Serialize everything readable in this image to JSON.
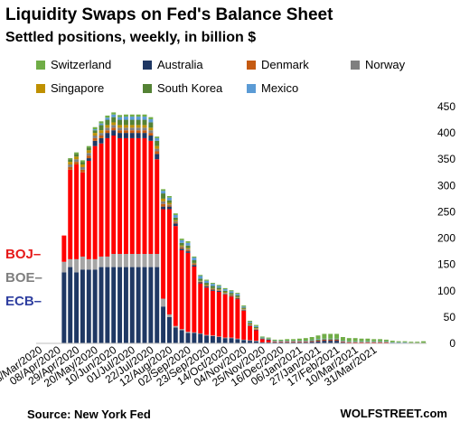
{
  "header": {
    "title": "Liquidity Swaps on Fed's Balance Sheet",
    "subtitle": "Settled positions, weekly, in billion $"
  },
  "legend": [
    {
      "name": "Switzerland",
      "color": "#70ad47"
    },
    {
      "name": "Australia",
      "color": "#1f3864"
    },
    {
      "name": "Denmark",
      "color": "#c55a11"
    },
    {
      "name": "Norway",
      "color": "#7f7f7f"
    },
    {
      "name": "Singapore",
      "color": "#bf9000"
    },
    {
      "name": "South Korea",
      "color": "#548235"
    },
    {
      "name": "Mexico",
      "color": "#5b9bd5"
    }
  ],
  "side_labels": [
    {
      "text": "BOJ",
      "color": "#e61919"
    },
    {
      "text": "BOE",
      "color": "#7f7f7f"
    },
    {
      "text": "ECB",
      "color": "#2f3fa0"
    }
  ],
  "footer": {
    "source": "Source: New York Fed",
    "brand": "WOLFSTREET.com"
  },
  "chart_data": {
    "type": "bar",
    "stacked": true,
    "y_axis_position": "right",
    "ylim": [
      0,
      450
    ],
    "yticks": [
      0,
      50,
      100,
      150,
      200,
      250,
      300,
      350,
      400,
      450
    ],
    "grid": false,
    "xlabels": [
      "18/Mar/2020",
      "08/Apr/2020",
      "29/Apr/2020",
      "20/May/2020",
      "10/Jun/2020",
      "01/Jul/2020",
      "22/Jul/2020",
      "12/Aug/2020",
      "02/Sep/2020",
      "23/Sep/2020",
      "14/Oct/2020",
      "04/Nov/2020",
      "25/Nov/2020",
      "16/Dec/2020",
      "06/Jan/2021",
      "27/Jan/2021",
      "17/Feb/2021",
      "10/Mar/2021",
      "31/Mar/2021"
    ],
    "series_colors": {
      "ECB": "#1f3864",
      "BOE": "#a5a5a5",
      "BOJ": "#ff0000",
      "Switzerland": "#70ad47",
      "Australia": "#1f3864",
      "Denmark": "#c55a11",
      "Norway": "#7f7f7f",
      "Singapore": "#bf9000",
      "South Korea": "#548235",
      "Mexico": "#5b9bd5"
    },
    "weeks": [
      {
        "ECB": 0.3,
        "BOE": 0,
        "BOJ": 0.1,
        "Switzerland": 0,
        "Australia": 0,
        "Denmark": 0,
        "Norway": 0,
        "Singapore": 0,
        "South Korea": 0,
        "Mexico": 0
      },
      {
        "ECB": 0.3,
        "BOE": 0,
        "BOJ": 0.1,
        "Switzerland": 0,
        "Australia": 0,
        "Denmark": 0,
        "Norway": 0,
        "Singapore": 0,
        "South Korea": 0,
        "Mexico": 0
      },
      {
        "ECB": 0.3,
        "BOE": 0,
        "BOJ": 0.2,
        "Switzerland": 0,
        "Australia": 0,
        "Denmark": 0,
        "Norway": 0,
        "Singapore": 0,
        "South Korea": 0,
        "Mexico": 0
      },
      {
        "ECB": 0.3,
        "BOE": 0,
        "BOJ": 0.2,
        "Switzerland": 0,
        "Australia": 0,
        "Denmark": 0,
        "Norway": 0,
        "Singapore": 0,
        "South Korea": 0,
        "Mexico": 0
      },
      {
        "ECB": 135,
        "BOE": 20,
        "BOJ": 50,
        "Switzerland": 0,
        "Australia": 0,
        "Denmark": 0,
        "Norway": 0,
        "Singapore": 0,
        "South Korea": 0,
        "Mexico": 0
      },
      {
        "ECB": 145,
        "BOE": 15,
        "BOJ": 170,
        "Switzerland": 2,
        "Australia": 0,
        "Denmark": 5,
        "Norway": 5,
        "Singapore": 5,
        "South Korea": 5,
        "Mexico": 0
      },
      {
        "ECB": 135,
        "BOE": 25,
        "BOJ": 180,
        "Switzerland": 3,
        "Australia": 0,
        "Denmark": 5,
        "Norway": 5,
        "Singapore": 5,
        "South Korea": 5,
        "Mexico": 0
      },
      {
        "ECB": 140,
        "BOE": 25,
        "BOJ": 160,
        "Switzerland": 3,
        "Australia": 0,
        "Denmark": 5,
        "Norway": 5,
        "Singapore": 5,
        "South Korea": 5,
        "Mexico": 0
      },
      {
        "ECB": 140,
        "BOE": 20,
        "BOJ": 187,
        "Switzerland": 3,
        "Australia": 5,
        "Denmark": 5,
        "Norway": 5,
        "Singapore": 5,
        "South Korea": 5,
        "Mexico": 0
      },
      {
        "ECB": 140,
        "BOE": 20,
        "BOJ": 215,
        "Switzerland": 4,
        "Australia": 10,
        "Denmark": 5,
        "Norway": 5,
        "Singapore": 5,
        "South Korea": 5,
        "Mexico": 2
      },
      {
        "ECB": 145,
        "BOE": 20,
        "BOJ": 215,
        "Switzerland": 4,
        "Australia": 10,
        "Denmark": 5,
        "Norway": 5,
        "Singapore": 5,
        "South Korea": 10,
        "Mexico": 3
      },
      {
        "ECB": 145,
        "BOE": 20,
        "BOJ": 225,
        "Switzerland": 4,
        "Australia": 10,
        "Denmark": 5,
        "Norway": 5,
        "Singapore": 5,
        "South Korea": 10,
        "Mexico": 4
      },
      {
        "ECB": 145,
        "BOE": 25,
        "BOJ": 225,
        "Switzerland": 4,
        "Australia": 10,
        "Denmark": 5,
        "Norway": 5,
        "Singapore": 5,
        "South Korea": 10,
        "Mexico": 5
      },
      {
        "ECB": 145,
        "BOE": 25,
        "BOJ": 220,
        "Switzerland": 4,
        "Australia": 10,
        "Denmark": 5,
        "Norway": 5,
        "Singapore": 5,
        "South Korea": 10,
        "Mexico": 5
      },
      {
        "ECB": 145,
        "BOE": 25,
        "BOJ": 220,
        "Switzerland": 4,
        "Australia": 10,
        "Denmark": 5,
        "Norway": 5,
        "Singapore": 5,
        "South Korea": 10,
        "Mexico": 6
      },
      {
        "ECB": 145,
        "BOE": 25,
        "BOJ": 220,
        "Switzerland": 4,
        "Australia": 10,
        "Denmark": 5,
        "Norway": 5,
        "Singapore": 5,
        "South Korea": 10,
        "Mexico": 6
      },
      {
        "ECB": 145,
        "BOE": 25,
        "BOJ": 220,
        "Switzerland": 4,
        "Australia": 10,
        "Denmark": 5,
        "Norway": 5,
        "Singapore": 5,
        "South Korea": 10,
        "Mexico": 6
      },
      {
        "ECB": 145,
        "BOE": 25,
        "BOJ": 220,
        "Switzerland": 4,
        "Australia": 10,
        "Denmark": 5,
        "Norway": 5,
        "Singapore": 5,
        "South Korea": 10,
        "Mexico": 6
      },
      {
        "ECB": 145,
        "BOE": 25,
        "BOJ": 215,
        "Switzerland": 4,
        "Australia": 10,
        "Denmark": 5,
        "Norway": 5,
        "Singapore": 5,
        "South Korea": 10,
        "Mexico": 6
      },
      {
        "ECB": 145,
        "BOE": 25,
        "BOJ": 180,
        "Switzerland": 3,
        "Australia": 10,
        "Denmark": 5,
        "Norway": 5,
        "Singapore": 5,
        "South Korea": 10,
        "Mexico": 5
      },
      {
        "ECB": 70,
        "BOE": 15,
        "BOJ": 170,
        "Switzerland": 3,
        "Australia": 5,
        "Denmark": 5,
        "Norway": 5,
        "Singapore": 5,
        "South Korea": 10,
        "Mexico": 5
      },
      {
        "ECB": 50,
        "BOE": 5,
        "BOJ": 200,
        "Switzerland": 3,
        "Australia": 5,
        "Denmark": 2,
        "Norway": 2,
        "Singapore": 3,
        "South Korea": 5,
        "Mexico": 5
      },
      {
        "ECB": 30,
        "BOE": 3,
        "BOJ": 190,
        "Switzerland": 3,
        "Australia": 5,
        "Denmark": 2,
        "Norway": 2,
        "Singapore": 2,
        "South Korea": 5,
        "Mexico": 5
      },
      {
        "ECB": 25,
        "BOE": 2,
        "BOJ": 150,
        "Switzerland": 3,
        "Australia": 3,
        "Denmark": 2,
        "Norway": 2,
        "Singapore": 2,
        "South Korea": 5,
        "Mexico": 5
      },
      {
        "ECB": 20,
        "BOE": 2,
        "BOJ": 150,
        "Switzerland": 3,
        "Australia": 3,
        "Denmark": 2,
        "Norway": 2,
        "Singapore": 2,
        "South Korea": 5,
        "Mexico": 5
      },
      {
        "ECB": 20,
        "BOE": 1,
        "BOJ": 125,
        "Switzerland": 2,
        "Australia": 3,
        "Denmark": 2,
        "Norway": 1,
        "Singapore": 1,
        "South Korea": 5,
        "Mexico": 5
      },
      {
        "ECB": 18,
        "BOE": 1,
        "BOJ": 95,
        "Switzerland": 2,
        "Australia": 2,
        "Denmark": 1,
        "Norway": 1,
        "Singapore": 1,
        "South Korea": 4,
        "Mexico": 5
      },
      {
        "ECB": 15,
        "BOE": 1,
        "BOJ": 90,
        "Switzerland": 2,
        "Australia": 2,
        "Denmark": 1,
        "Norway": 1,
        "Singapore": 1,
        "South Korea": 4,
        "Mexico": 4
      },
      {
        "ECB": 14,
        "BOE": 1,
        "BOJ": 85,
        "Switzerland": 2,
        "Australia": 2,
        "Denmark": 1,
        "Norway": 1,
        "Singapore": 1,
        "South Korea": 4,
        "Mexico": 4
      },
      {
        "ECB": 12,
        "BOE": 1,
        "BOJ": 85,
        "Switzerland": 2,
        "Australia": 2,
        "Denmark": 1,
        "Norway": 1,
        "Singapore": 1,
        "South Korea": 3,
        "Mexico": 3
      },
      {
        "ECB": 10,
        "BOE": 1,
        "BOJ": 82,
        "Switzerland": 2,
        "Australia": 1,
        "Denmark": 1,
        "Norway": 1,
        "Singapore": 1,
        "South Korea": 3,
        "Mexico": 3
      },
      {
        "ECB": 10,
        "BOE": 1,
        "BOJ": 78,
        "Switzerland": 2,
        "Australia": 1,
        "Denmark": 1,
        "Norway": 1,
        "Singapore": 1,
        "South Korea": 3,
        "Mexico": 3
      },
      {
        "ECB": 8,
        "BOE": 1,
        "BOJ": 75,
        "Switzerland": 2,
        "Australia": 1,
        "Denmark": 1,
        "Norway": 1,
        "Singapore": 1,
        "South Korea": 3,
        "Mexico": 3
      },
      {
        "ECB": 6,
        "BOE": 1,
        "BOJ": 55,
        "Switzerland": 2,
        "Australia": 1,
        "Denmark": 1,
        "Norway": 1,
        "Singapore": 1,
        "South Korea": 2,
        "Mexico": 2
      },
      {
        "ECB": 5,
        "BOE": 1,
        "BOJ": 27,
        "Switzerland": 2,
        "Australia": 1,
        "Denmark": 1,
        "Norway": 1,
        "Singapore": 1,
        "South Korea": 2,
        "Mexico": 2
      },
      {
        "ECB": 4,
        "BOE": 1,
        "BOJ": 20,
        "Switzerland": 2,
        "Australia": 1,
        "Denmark": 1,
        "Norway": 1,
        "Singapore": 1,
        "South Korea": 2,
        "Mexico": 2
      },
      {
        "ECB": 2,
        "BOE": 0,
        "BOJ": 6,
        "Switzerland": 2,
        "Australia": 1,
        "Denmark": 0,
        "Norway": 0,
        "Singapore": 0,
        "South Korea": 1,
        "Mexico": 1
      },
      {
        "ECB": 2,
        "BOE": 0,
        "BOJ": 4,
        "Switzerland": 2,
        "Australia": 1,
        "Denmark": 0,
        "Norway": 0,
        "Singapore": 0,
        "South Korea": 1,
        "Mexico": 1
      },
      {
        "ECB": 2,
        "BOE": 0,
        "BOJ": 1,
        "Switzerland": 2,
        "Australia": 0,
        "Denmark": 0,
        "Norway": 0,
        "Singapore": 0,
        "South Korea": 1,
        "Mexico": 1
      },
      {
        "ECB": 2,
        "BOE": 0,
        "BOJ": 1,
        "Switzerland": 2,
        "Australia": 0,
        "Denmark": 0,
        "Norway": 0,
        "Singapore": 0,
        "South Korea": 1,
        "Mexico": 1
      },
      {
        "ECB": 2,
        "BOE": 0,
        "BOJ": 1,
        "Switzerland": 3,
        "Australia": 0,
        "Denmark": 0,
        "Norway": 0,
        "Singapore": 0,
        "South Korea": 1,
        "Mexico": 1
      },
      {
        "ECB": 2,
        "BOE": 0,
        "BOJ": 1,
        "Switzerland": 3,
        "Australia": 0,
        "Denmark": 0,
        "Norway": 0,
        "Singapore": 0,
        "South Korea": 1,
        "Mexico": 1
      },
      {
        "ECB": 2,
        "BOE": 0,
        "BOJ": 1,
        "Switzerland": 4,
        "Australia": 0,
        "Denmark": 0,
        "Norway": 0,
        "Singapore": 0,
        "South Korea": 1,
        "Mexico": 1
      },
      {
        "ECB": 2,
        "BOE": 0,
        "BOJ": 1,
        "Switzerland": 5,
        "Australia": 0,
        "Denmark": 0,
        "Norway": 0,
        "Singapore": 0,
        "South Korea": 1,
        "Mexico": 1
      },
      {
        "ECB": 3,
        "BOE": 0,
        "BOJ": 1,
        "Switzerland": 6,
        "Australia": 0,
        "Denmark": 0,
        "Norway": 0,
        "Singapore": 0,
        "South Korea": 1,
        "Mexico": 1
      },
      {
        "ECB": 4,
        "BOE": 0,
        "BOJ": 1,
        "Switzerland": 7,
        "Australia": 0,
        "Denmark": 0,
        "Norway": 0,
        "Singapore": 0,
        "South Korea": 2,
        "Mexico": 1
      },
      {
        "ECB": 5,
        "BOE": 0,
        "BOJ": 1,
        "Switzerland": 9,
        "Australia": 0,
        "Denmark": 0,
        "Norway": 0,
        "Singapore": 0,
        "South Korea": 2,
        "Mexico": 1
      },
      {
        "ECB": 5,
        "BOE": 0,
        "BOJ": 1,
        "Switzerland": 9,
        "Australia": 0,
        "Denmark": 0,
        "Norway": 0,
        "Singapore": 0,
        "South Korea": 2,
        "Mexico": 1
      },
      {
        "ECB": 5,
        "BOE": 0,
        "BOJ": 1,
        "Switzerland": 9,
        "Australia": 0,
        "Denmark": 0,
        "Norway": 0,
        "Singapore": 0,
        "South Korea": 2,
        "Mexico": 1
      },
      {
        "ECB": 2,
        "BOE": 0,
        "BOJ": 1,
        "Switzerland": 7,
        "Australia": 0,
        "Denmark": 0,
        "Norway": 0,
        "Singapore": 0,
        "South Korea": 1,
        "Mexico": 1
      },
      {
        "ECB": 1,
        "BOE": 0,
        "BOJ": 1,
        "Switzerland": 6,
        "Australia": 0,
        "Denmark": 0,
        "Norway": 0,
        "Singapore": 0,
        "South Korea": 1,
        "Mexico": 1
      },
      {
        "ECB": 1,
        "BOE": 0,
        "BOJ": 1,
        "Switzerland": 6,
        "Australia": 0,
        "Denmark": 0,
        "Norway": 0,
        "Singapore": 0,
        "South Korea": 1,
        "Mexico": 1
      },
      {
        "ECB": 1,
        "BOE": 0,
        "BOJ": 1,
        "Switzerland": 5,
        "Australia": 0,
        "Denmark": 0,
        "Norway": 0,
        "Singapore": 0,
        "South Korea": 1,
        "Mexico": 1
      },
      {
        "ECB": 1,
        "BOE": 0,
        "BOJ": 1,
        "Switzerland": 5,
        "Australia": 0,
        "Denmark": 0,
        "Norway": 0,
        "Singapore": 0,
        "South Korea": 1,
        "Mexico": 1
      },
      {
        "ECB": 1,
        "BOE": 0,
        "BOJ": 1,
        "Switzerland": 4,
        "Australia": 0,
        "Denmark": 0,
        "Norway": 0,
        "Singapore": 0,
        "South Korea": 1,
        "Mexico": 1
      },
      {
        "ECB": 1,
        "BOE": 0,
        "BOJ": 1,
        "Switzerland": 4,
        "Australia": 0,
        "Denmark": 0,
        "Norway": 0,
        "Singapore": 0,
        "South Korea": 1,
        "Mexico": 1
      },
      {
        "ECB": 1,
        "BOE": 0,
        "BOJ": 1,
        "Switzerland": 3,
        "Australia": 0,
        "Denmark": 0,
        "Norway": 0,
        "Singapore": 0,
        "South Korea": 1,
        "Mexico": 1
      },
      {
        "ECB": 0,
        "BOE": 0,
        "BOJ": 0,
        "Switzerland": 3,
        "Australia": 0,
        "Denmark": 0,
        "Norway": 0,
        "Singapore": 0,
        "South Korea": 1,
        "Mexico": 1
      },
      {
        "ECB": 0,
        "BOE": 0,
        "BOJ": 0,
        "Switzerland": 2,
        "Australia": 0,
        "Denmark": 0,
        "Norway": 0,
        "Singapore": 0,
        "South Korea": 1,
        "Mexico": 1
      },
      {
        "ECB": 0,
        "BOE": 0,
        "BOJ": 0,
        "Switzerland": 2,
        "Australia": 0,
        "Denmark": 0,
        "Norway": 0,
        "Singapore": 0,
        "South Korea": 1,
        "Mexico": 1
      },
      {
        "ECB": 0,
        "BOE": 0,
        "BOJ": 0,
        "Switzerland": 2,
        "Australia": 0,
        "Denmark": 0,
        "Norway": 0,
        "Singapore": 0,
        "South Korea": 0,
        "Mexico": 1
      },
      {
        "ECB": 0,
        "BOE": 0,
        "BOJ": 0,
        "Switzerland": 2,
        "Australia": 0,
        "Denmark": 0,
        "Norway": 0,
        "Singapore": 0,
        "South Korea": 0,
        "Mexico": 1
      },
      {
        "ECB": 0,
        "BOE": 0,
        "BOJ": 0,
        "Switzerland": 3,
        "Australia": 0,
        "Denmark": 0,
        "Norway": 0,
        "Singapore": 0,
        "South Korea": 0,
        "Mexico": 1
      }
    ]
  }
}
